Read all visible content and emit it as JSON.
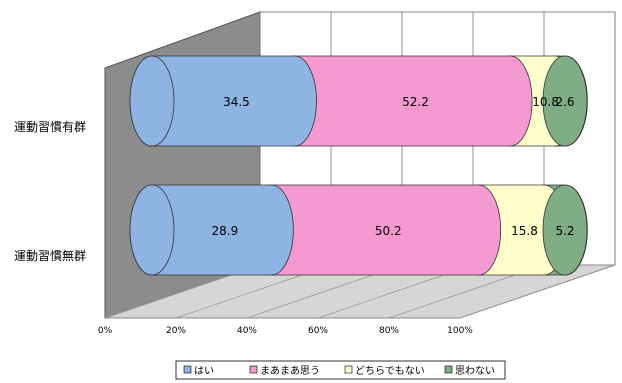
{
  "chart_data": {
    "type": "bar",
    "orientation": "horizontal",
    "stacked": "percent",
    "style": "3d-cylinder",
    "categories": [
      "運動習慣有群",
      "運動習慣無群"
    ],
    "series": [
      {
        "name": "はい",
        "color": "#8EB4E3",
        "values": [
          34.5,
          28.9
        ]
      },
      {
        "name": "まあまあ思う",
        "color": "#F49AD0",
        "values": [
          52.2,
          50.2
        ]
      },
      {
        "name": "どちらでもない",
        "color": "#FFFFCC",
        "values": [
          10.8,
          15.8
        ]
      },
      {
        "name": "思わない",
        "color": "#7FAE84",
        "values": [
          2.6,
          5.2
        ]
      }
    ],
    "data_labels": [
      [
        "34.5",
        "28.9"
      ],
      [
        "52.2",
        "50.2"
      ],
      [
        "10.8",
        "15.8"
      ],
      [
        "2.6",
        "5.2"
      ]
    ],
    "xaxis_ticks": [
      "0%",
      "20%",
      "40%",
      "60%",
      "80%",
      "100%"
    ],
    "xlim": [
      0,
      100
    ],
    "grid": true,
    "legend_position": "bottom",
    "title": "",
    "xlabel": "",
    "ylabel": ""
  }
}
